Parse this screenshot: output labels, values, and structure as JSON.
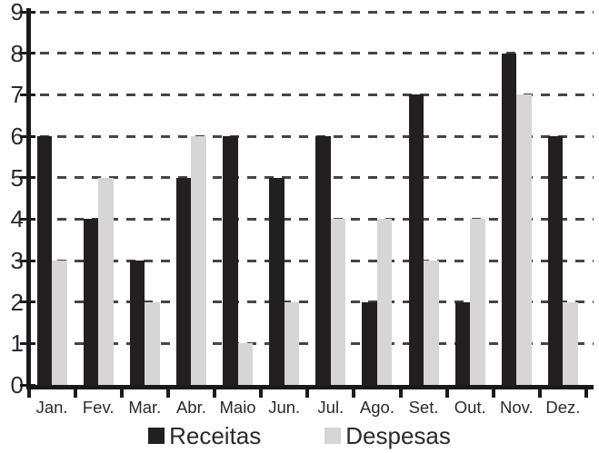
{
  "palette": {
    "axis": "#1a1a1a",
    "grid": "#454545",
    "text": "#2b2833",
    "background": "#ffffff"
  },
  "chart_data": {
    "type": "bar",
    "title": "",
    "xlabel": "",
    "ylabel": "",
    "categories": [
      "Jan.",
      "Fev.",
      "Mar.",
      "Abr.",
      "Maio",
      "Jun.",
      "Jul.",
      "Ago.",
      "Set.",
      "Out.",
      "Nov.",
      "Dez."
    ],
    "series": [
      {
        "name": "Receitas",
        "color": "#231f20",
        "values": [
          6,
          4,
          3,
          5,
          6,
          5,
          6,
          2,
          7,
          2,
          8,
          6
        ]
      },
      {
        "name": "Despesas",
        "color": "#d6d6d6",
        "values": [
          3,
          5,
          2,
          6,
          1,
          2,
          4,
          4,
          3,
          4,
          7,
          2
        ]
      }
    ],
    "ylim": [
      0,
      9
    ],
    "yticks": [
      0,
      1,
      2,
      3,
      4,
      5,
      6,
      7,
      8,
      9
    ],
    "grid": "horizontal-dashed",
    "legend_position": "bottom"
  }
}
